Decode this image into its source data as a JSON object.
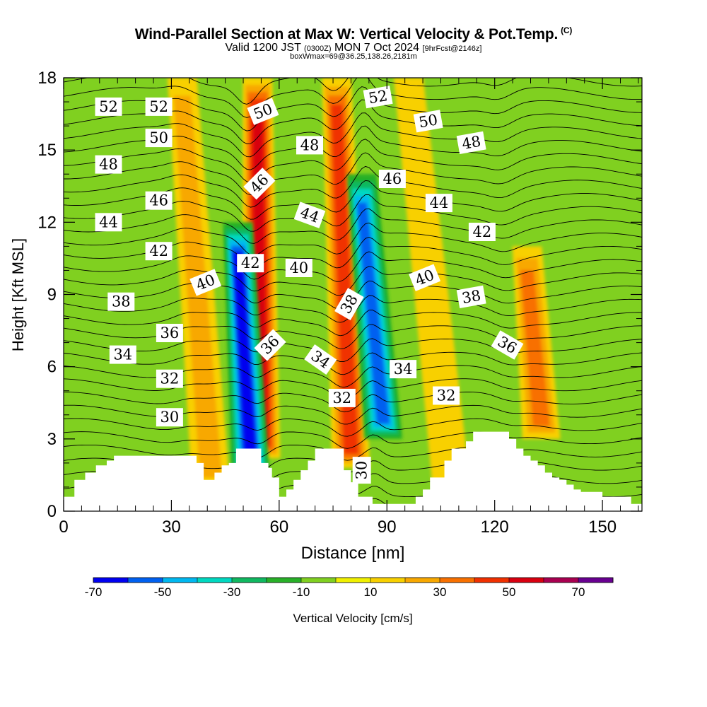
{
  "header": {
    "title": "Wind-Parallel Section at Max W: Vertical Velocity & Pot.Temp.",
    "copyright": "(C)",
    "valid_prefix": "Valid 1200 JST",
    "valid_utc": "(0300Z)",
    "valid_date": "MON 7 Oct 2024",
    "forecast": "[9hrFcst@2146z]",
    "box_info": "boxWmax=69@36.25,138.26,2181m"
  },
  "chart_data": {
    "type": "heatmap",
    "xlabel": "Distance [nm]",
    "ylabel": "Height [Kft MSL]",
    "xlim": [
      0,
      161
    ],
    "ylim": [
      0,
      18
    ],
    "x_ticks": [
      0,
      30,
      60,
      90,
      120,
      150
    ],
    "y_ticks": [
      0,
      3,
      6,
      9,
      12,
      15,
      18
    ],
    "colorbar": {
      "label": "Vertical Velocity [cm/s]",
      "range": [
        -70,
        80
      ],
      "tick_labels": [
        -70,
        -50,
        -30,
        -10,
        10,
        30,
        50,
        70
      ],
      "colors": [
        "#0000f0",
        "#0060f0",
        "#00b8f0",
        "#00d8c0",
        "#10b860",
        "#28b028",
        "#80d020",
        "#f0f000",
        "#f8d000",
        "#f8a800",
        "#f87000",
        "#f03000",
        "#d80010",
        "#a80050",
        "#680090"
      ]
    },
    "vertical_velocity_bands": [
      {
        "kind": "updraft",
        "x_bottom": 55.0,
        "x_top": 54.0,
        "z_bottom": 2.2,
        "z_top": 18,
        "peak_cms": 55
      },
      {
        "kind": "downdraft",
        "x_bottom": 52.0,
        "x_top": 48.5,
        "z_bottom": 1.6,
        "z_top": 12,
        "peak_cms": -70
      },
      {
        "kind": "updraft",
        "x_bottom": 80.0,
        "x_top": 76.0,
        "z_bottom": 1.8,
        "z_top": 18,
        "peak_cms": 50
      },
      {
        "kind": "downdraft",
        "x_bottom": 89.0,
        "x_top": 83.0,
        "z_bottom": 3.0,
        "z_top": 14,
        "peak_cms": -55
      },
      {
        "kind": "updraft",
        "x_bottom": 133.0,
        "x_top": 129.0,
        "z_bottom": 3.0,
        "z_top": 11,
        "peak_cms": 40
      },
      {
        "kind": "updraft",
        "x_bottom": 41.0,
        "x_top": 33.0,
        "z_bottom": 1.0,
        "z_top": 18,
        "peak_cms": 25
      },
      {
        "kind": "updraft",
        "x_bottom": 108.0,
        "x_top": 96.0,
        "z_bottom": 1.0,
        "z_top": 18,
        "peak_cms": 15
      }
    ],
    "terrain_profile": {
      "x": [
        0,
        3,
        6,
        9,
        12,
        14,
        16,
        18,
        20,
        22,
        24,
        26,
        28,
        30,
        32,
        34,
        36,
        37,
        39,
        41,
        42,
        44,
        46,
        48,
        49,
        51,
        53,
        55,
        57,
        58,
        60,
        62,
        64,
        66,
        68,
        70,
        72,
        74,
        76,
        78,
        80,
        82,
        84,
        86,
        88,
        90,
        92,
        94,
        96,
        98,
        100,
        102,
        104,
        106,
        108,
        110,
        112,
        114,
        116,
        118,
        120,
        122,
        124,
        126,
        128,
        130,
        132,
        134,
        136,
        138,
        140,
        142,
        144,
        146,
        148,
        150,
        152,
        154,
        156,
        158,
        160,
        161
      ],
      "height_kft": [
        0.6,
        1.3,
        1.6,
        1.9,
        2.1,
        2.3,
        2.3,
        2.3,
        2.3,
        2.3,
        2.3,
        2.3,
        2.3,
        2.3,
        2.3,
        2.3,
        2.3,
        2.0,
        1.3,
        1.3,
        1.6,
        1.9,
        2.0,
        2.6,
        2.6,
        2.6,
        2.6,
        2.0,
        1.8,
        1.4,
        0.6,
        0.9,
        1.3,
        1.7,
        2.1,
        2.6,
        2.6,
        2.6,
        2.6,
        1.7,
        1.2,
        0.6,
        0.6,
        0.3,
        0.3,
        0.3,
        0.3,
        0.3,
        0.3,
        0.6,
        0.9,
        1.4,
        1.4,
        2.1,
        2.6,
        2.6,
        2.9,
        3.3,
        3.3,
        3.3,
        3.3,
        3.3,
        3.0,
        2.6,
        2.3,
        2.1,
        1.9,
        1.6,
        1.4,
        1.3,
        1.1,
        0.9,
        0.8,
        0.8,
        0.8,
        0.6,
        0.6,
        0.6,
        0.6,
        0.3,
        0.3,
        0.3
      ]
    },
    "isentrope_labels": [
      {
        "text": "52",
        "x": 12.5,
        "y": 16.8,
        "rot": 0
      },
      {
        "text": "52",
        "x": 26.5,
        "y": 16.8,
        "rot": 0
      },
      {
        "text": "50",
        "x": 26.5,
        "y": 15.5,
        "rot": 0
      },
      {
        "text": "48",
        "x": 12.5,
        "y": 14.4,
        "rot": 0
      },
      {
        "text": "46",
        "x": 26.5,
        "y": 12.9,
        "rot": 0
      },
      {
        "text": "44",
        "x": 12.5,
        "y": 12.0,
        "rot": 0
      },
      {
        "text": "42",
        "x": 26.5,
        "y": 10.8,
        "rot": 0
      },
      {
        "text": "40",
        "x": 39.5,
        "y": 9.5,
        "rot": -22
      },
      {
        "text": "38",
        "x": 16.0,
        "y": 8.7,
        "rot": 0
      },
      {
        "text": "36",
        "x": 29.5,
        "y": 7.4,
        "rot": 0
      },
      {
        "text": "34",
        "x": 16.5,
        "y": 6.5,
        "rot": 0
      },
      {
        "text": "32",
        "x": 29.5,
        "y": 5.5,
        "rot": 0
      },
      {
        "text": "30",
        "x": 29.5,
        "y": 3.9,
        "rot": 0
      },
      {
        "text": "50",
        "x": 55.5,
        "y": 16.6,
        "rot": -22
      },
      {
        "text": "46",
        "x": 54.5,
        "y": 13.6,
        "rot": -45
      },
      {
        "text": "42",
        "x": 52.0,
        "y": 10.3,
        "rot": 0
      },
      {
        "text": "36",
        "x": 57.5,
        "y": 6.9,
        "rot": -45
      },
      {
        "text": "48",
        "x": 68.5,
        "y": 15.2,
        "rot": 0
      },
      {
        "text": "44",
        "x": 68.5,
        "y": 12.3,
        "rot": 20
      },
      {
        "text": "40",
        "x": 65.5,
        "y": 10.1,
        "rot": 0
      },
      {
        "text": "34",
        "x": 71.5,
        "y": 6.3,
        "rot": 35
      },
      {
        "text": "38",
        "x": 79.5,
        "y": 8.6,
        "rot": -60
      },
      {
        "text": "32",
        "x": 77.5,
        "y": 4.7,
        "rot": 0
      },
      {
        "text": "30",
        "x": 83.0,
        "y": 1.7,
        "rot": -90
      },
      {
        "text": "52",
        "x": 87.5,
        "y": 17.2,
        "rot": -10
      },
      {
        "text": "50",
        "x": 101.5,
        "y": 16.2,
        "rot": -10
      },
      {
        "text": "46",
        "x": 91.5,
        "y": 13.8,
        "rot": 0
      },
      {
        "text": "44",
        "x": 104.5,
        "y": 12.8,
        "rot": 0
      },
      {
        "text": "40",
        "x": 100.5,
        "y": 9.7,
        "rot": -22
      },
      {
        "text": "34",
        "x": 94.5,
        "y": 5.9,
        "rot": 0
      },
      {
        "text": "32",
        "x": 106.5,
        "y": 4.8,
        "rot": 0
      },
      {
        "text": "48",
        "x": 113.5,
        "y": 15.3,
        "rot": -10
      },
      {
        "text": "42",
        "x": 116.5,
        "y": 11.6,
        "rot": 0
      },
      {
        "text": "38",
        "x": 113.5,
        "y": 8.9,
        "rot": -10
      },
      {
        "text": "36",
        "x": 123.5,
        "y": 6.9,
        "rot": 30
      }
    ]
  }
}
